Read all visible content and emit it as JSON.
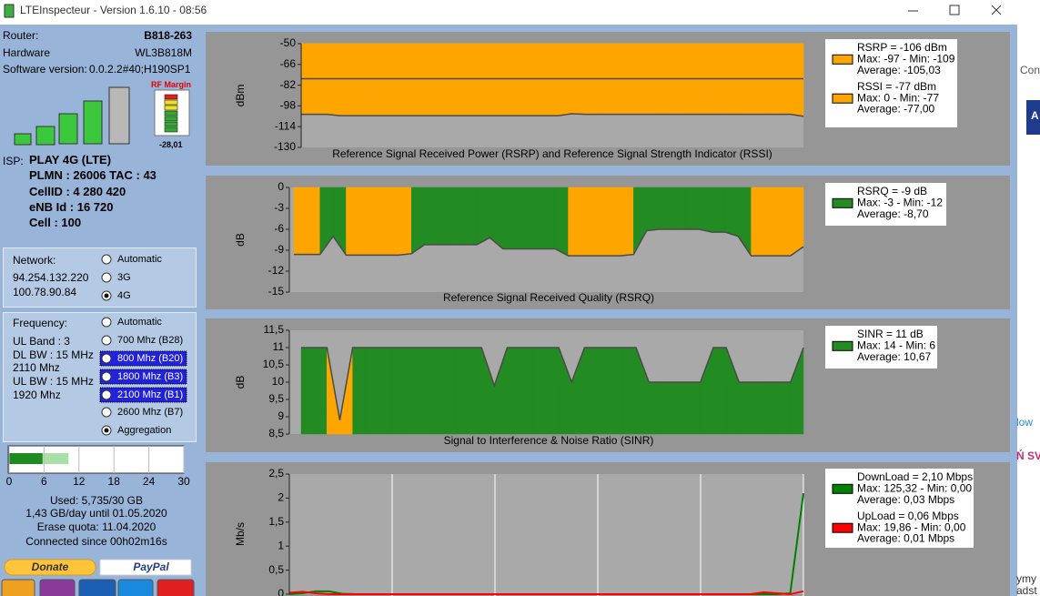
{
  "window": {
    "title": "LTEInspecteur - Version 1.6.10 - 08:56"
  },
  "router": {
    "router_label": "Router:",
    "router": "B818-263",
    "hardware_label": "Hardware",
    "hardware": "WL3B818M",
    "software_label": "Software version:",
    "software": "0.0.2.2#40;H190SP1"
  },
  "rf_margin": {
    "label": "RF Margin",
    "value": "-28,01"
  },
  "isp": {
    "label": "ISP:",
    "operator": "PLAY 4G (LTE)",
    "plmn": "PLMN : 26006 TAC : 43",
    "cell_id": "CellID : 4 280 420",
    "enb_id": "eNB Id : 16 720",
    "cell": "Cell : 100"
  },
  "network": {
    "label": "Network:",
    "ips": [
      "94.254.132.220",
      "100.78.90.84"
    ],
    "options": [
      "Automatic",
      "3G",
      "4G"
    ],
    "selected": [
      2
    ]
  },
  "frequency": {
    "label": "Frequency:",
    "info": [
      "UL Band : 3",
      "DL BW : 15 MHz",
      "2110 Mhz",
      "UL BW : 15 MHz",
      "1920 Mhz"
    ],
    "options": [
      "Automatic",
      "700 Mhz (B28)",
      "800 Mhz (B20)",
      "1800 Mhz (B3)",
      "2100 Mhz (B1)",
      "2600 Mhz (B7)",
      "Aggregation"
    ],
    "highlighted": [
      2,
      3,
      4
    ],
    "selected": [
      6
    ]
  },
  "quota": {
    "xlim": [
      0,
      30
    ],
    "xticks": [
      0,
      6,
      12,
      18,
      24,
      30
    ],
    "used": 5.735,
    "projected": 10.2,
    "lines": [
      "Used: 5,735/30 GB",
      "1,43 GB/day until 01.05.2020",
      "Erase quota: 11.04.2020",
      "Connected since 00h02m16s"
    ]
  },
  "buttons": {
    "donate": "Donate",
    "paypal": "PayPal"
  },
  "charts": [
    {
      "type": "area",
      "title": "Reference Signal Received Power (RSRP) and Reference Signal Strength Indicator (RSSI)",
      "ylabel": "dBm",
      "ylim": [
        -130,
        -50
      ],
      "yticks": [
        -50,
        -66,
        -82,
        -98,
        -114,
        -130
      ],
      "series": [
        {
          "color": "#ffa500",
          "fill": "top",
          "legend": [
            "RSRP = -106 dBm",
            "Max: -97 - Min: -109",
            "Average: -105,03"
          ],
          "values": [
            -104.5,
            -104.5,
            -104.5,
            -105.5,
            -105.5,
            -105.5,
            -105.5,
            -105.5,
            -105.5,
            -105.5,
            -105.5,
            -105.5,
            -105.5,
            -105.5,
            -105.5,
            -105.5,
            -105.5,
            -105.5,
            -105.5,
            -105.5,
            -105.5,
            -104,
            -104.5,
            -104.5,
            -104.5,
            -104.5,
            -104.5,
            -104.5,
            -104.5,
            -104.5,
            -104.5,
            -104.5,
            -104.5,
            -104.5,
            -104.5,
            -104.5,
            -104.5,
            -104.5,
            -104.5,
            -106
          ]
        },
        {
          "color": "#ffa500",
          "fill": "top",
          "legend": [
            "RSSI = -77 dBm",
            "Max: 0 - Min: -77",
            "Average: -77,00"
          ],
          "values": [
            -77,
            -77,
            -77,
            -77,
            -77,
            -77,
            -77,
            -77,
            -77,
            -77,
            -77,
            -77,
            -77,
            -77,
            -77,
            -77,
            -77,
            -77,
            -77,
            -77,
            -77,
            -77,
            -77,
            -77,
            -77,
            -77,
            -77,
            -77,
            -77,
            -77,
            -77,
            -77,
            -77,
            -77,
            -77,
            -77,
            -77,
            -77,
            -77,
            -77
          ]
        }
      ]
    },
    {
      "type": "area",
      "title": "Reference Signal Received Quality (RSRQ)",
      "ylabel": "dB",
      "ylim": [
        -15,
        0
      ],
      "yticks": [
        0,
        -3,
        -6,
        -9,
        -12,
        -15
      ],
      "series": [
        {
          "color": "#228b22",
          "fill": "top",
          "legend": [
            "RSRQ = -9 dB",
            "Max: -3 - Min: -12",
            "Average: -8,70"
          ],
          "values": [
            -9.6,
            -9.6,
            -9.6,
            -7,
            -9.7,
            -9.7,
            -9.7,
            -9.7,
            -9.7,
            -9.5,
            -8.2,
            -8.2,
            -8.2,
            -8.2,
            -8.2,
            -7.2,
            -8.8,
            -8.8,
            -8.8,
            -8.8,
            -8.8,
            -9.8,
            -9.8,
            -9.8,
            -9.8,
            -9.8,
            -9.6,
            -6.2,
            -6,
            -6,
            -6,
            -6,
            -6.4,
            -6.4,
            -7,
            -9.8,
            -9.8,
            -9.8,
            -9.8,
            -8.5
          ],
          "point_colors": [
            "#ffa500",
            "#ffa500",
            "#228b22",
            "#228b22",
            "#ffa500",
            "#ffa500",
            "#ffa500",
            "#ffa500",
            "#ffa500",
            "#228b22",
            "#228b22",
            "#228b22",
            "#228b22",
            "#228b22",
            "#228b22",
            "#228b22",
            "#228b22",
            "#228b22",
            "#228b22",
            "#228b22",
            "#228b22",
            "#ffa500",
            "#ffa500",
            "#ffa500",
            "#ffa500",
            "#ffa500",
            "#228b22",
            "#228b22",
            "#228b22",
            "#228b22",
            "#228b22",
            "#228b22",
            "#228b22",
            "#228b22",
            "#228b22",
            "#ffa500",
            "#ffa500",
            "#ffa500",
            "#ffa500",
            "#228b22"
          ]
        }
      ]
    },
    {
      "type": "area",
      "title": "Signal to Interference & Noise Ratio (SINR)",
      "ylabel": "dB",
      "ylim": [
        8.5,
        11.5
      ],
      "yticks": [
        {
          "value": 11.5,
          "label": "11,5"
        },
        11,
        {
          "value": 10.5,
          "label": "10,5"
        },
        10,
        {
          "value": 9.5,
          "label": "9,5"
        },
        9,
        {
          "value": 8.5,
          "label": "8,5"
        }
      ],
      "series": [
        {
          "color": "#228b22",
          "fill": "bottom",
          "legend": [
            "SINR = 11 dB",
            "Max: 14 - Min: 6",
            "Average: 10,67"
          ],
          "values": [
            11,
            11,
            11,
            8.9,
            11,
            11,
            11,
            11,
            11,
            11,
            11,
            11,
            11,
            11,
            11,
            9.9,
            11,
            11,
            11,
            11,
            11,
            10,
            11,
            11,
            11,
            11,
            11,
            10,
            10,
            10,
            10,
            10,
            11,
            11,
            10,
            10,
            10,
            10,
            10,
            11
          ],
          "point_colors": [
            "#228b22",
            "#228b22",
            "#ffa500",
            "#ffa500",
            "#228b22",
            "#228b22",
            "#228b22",
            "#228b22",
            "#228b22",
            "#228b22",
            "#228b22",
            "#228b22",
            "#228b22",
            "#228b22",
            "#228b22",
            "#228b22",
            "#228b22",
            "#228b22",
            "#228b22",
            "#228b22",
            "#228b22",
            "#228b22",
            "#228b22",
            "#228b22",
            "#228b22",
            "#228b22",
            "#228b22",
            "#228b22",
            "#228b22",
            "#228b22",
            "#228b22",
            "#228b22",
            "#228b22",
            "#228b22",
            "#228b22",
            "#228b22",
            "#228b22",
            "#228b22",
            "#228b22",
            "#228b22"
          ]
        }
      ]
    },
    {
      "type": "line",
      "ylabel": "Mb/s",
      "ylim": [
        0,
        2.5
      ],
      "yticks": [
        {
          "value": 2.5,
          "label": "2,5"
        },
        2,
        {
          "value": 1.5,
          "label": "1,5"
        },
        1,
        {
          "value": 0.5,
          "label": "0,5"
        },
        0
      ],
      "series": [
        {
          "color": "#008000",
          "legend": [
            "DownLoad = 2,10 Mbps",
            "Max: 125,32 - Min: 0,00",
            "Average: 0,03 Mbps"
          ],
          "values": [
            0,
            0.02,
            0.06,
            0.06,
            0.01,
            0,
            0,
            0,
            0,
            0,
            0,
            0,
            0,
            0,
            0,
            0,
            0,
            0,
            0,
            0,
            0,
            0,
            0,
            0,
            0,
            0,
            0,
            0,
            0,
            0,
            0,
            0,
            0,
            0,
            0,
            0,
            0,
            0,
            0.02,
            2.1
          ]
        },
        {
          "color": "#ff0000",
          "legend": [
            "UpLoad = 0,06 Mbps",
            "Max: 19,86 - Min: 0,00",
            "Average: 0,01 Mbps"
          ],
          "values": [
            0.03,
            0.05,
            0.02,
            0,
            0,
            0,
            0,
            0,
            0,
            0,
            0,
            0,
            0,
            0,
            0,
            0,
            0,
            0,
            0,
            0,
            0,
            0,
            0,
            0,
            0,
            0,
            0,
            0,
            0,
            0,
            0,
            0,
            0,
            0,
            0,
            0,
            0.04,
            0.02,
            0,
            0.06
          ]
        }
      ]
    }
  ],
  "browser_fragments": [
    "Con",
    "A",
    "low",
    "Ń SV",
    "ymy",
    "adst"
  ]
}
